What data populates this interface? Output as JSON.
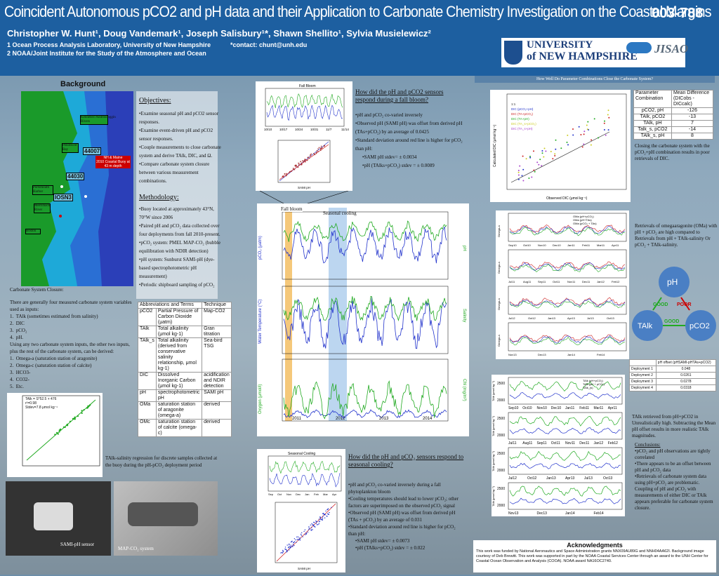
{
  "header": {
    "title": "Coincident Autonomous pCO2 and pH data and their Application to Carbonate Chemistry Investigation on the Coastal Margins",
    "poster_id": "003-788",
    "authors": "Christopher W. Hunt¹, Doug Vandemark¹, Joseph Salisbury¹*, Shawn Shellito¹,  Sylvia Musielewicz²",
    "affiliation1": "1 Ocean Process Analysis Laboratory, University of New Hampshire",
    "contact_label": "*contact:",
    "contact_email": "chunt@unh.edu",
    "affiliation2": "2 NOAA/Joint Institute for the Study of the Atmosphere and Ocean",
    "logo_unh_line1": "UNIVERSITY",
    "logo_unh_line2": "of NEW HAMPSHIRE",
    "logo_jisao": "JISAO"
  },
  "background": {
    "title": "Background",
    "map_labels": [
      "Kennebec/Androscoggin Rivers",
      "Penobscot Bay",
      "44007",
      "Portsmouth Harbor",
      "Great Bay",
      "Merrimack River",
      "Boston",
      "44030",
      "IOSN3",
      "Gulf of Maine",
      "NH & Maine",
      "2010 Coastal Buoy at 43 m depth"
    ],
    "closure_title": "Carbonate System Closure:",
    "closure_text": "There are generally four measured carbonate system variables used as inputs:",
    "closure_list": [
      "TAlk (sometimes estimated from salinity)",
      "DIC",
      "pCO₂",
      "pH."
    ],
    "closure_text2": "Using any two carbonate system inputs, the other two inputs, plus the rest of the carbonate system, can be derived:",
    "closure_list2": [
      "Omega-a (saturation station of aragonite)",
      "Omega-c (saturation station of calcite)",
      "HCO3-",
      "CO32-",
      "Etc."
    ],
    "reg_annotation": [
      "TAlk = S*52.5 + 476",
      "r²=0.98",
      "Stdev=7.8 μmol kg⁻¹"
    ],
    "reg_caption": "TAlk-salinity regression for discrete samples collected at the buoy during the pH-pCO₂ deployment period",
    "photo_left_label": "SAMI-pH sensor",
    "photo_right_label": "MAP-CO₂ system"
  },
  "objectives": {
    "title": "Objectives:",
    "items": [
      "•Examine seasonal pH and pCO2 sensor responses.",
      "•Examine event-driven pH and pCO2 sensor responses.",
      "•Couple measurements to close carbonate system and derive TAlk, DIC, and Ω.",
      "•Compare carbonate system closure between various measurement combinations."
    ]
  },
  "methodology": {
    "title": "Methodology:",
    "items": [
      "•Buoy located at approximately 43°N, 70°W since 2006",
      "•Paired pH and pCO₂ data collected over four deployments from fall 2010-present.",
      "•pCO₂ system: PMEL MAP-CO₂ (bubble equilibration with NDIR detection)",
      "•pH system: Sunburst SAMI-pH (dye-based spectrophotometric pH measurement)",
      "•Periodic shipboard sampling of pCO₂"
    ]
  },
  "abbr_table": {
    "headers": [
      "Abbreviations and Terms",
      "Technique"
    ],
    "rows": [
      [
        "pCO2",
        "Partial Pressure of Carbon Dioxide (μatm)",
        "Map-CO2"
      ],
      [
        "TAlk",
        "Total alkalinity (μmol kg-1)",
        "Gran titration"
      ],
      [
        "TAlk_s",
        "Total alkalinity (derived from conservative salinity relationship, μmol kg-1)",
        "Sea-bird TSG"
      ],
      [
        "DIC",
        "Dissolved Inorganic Carbon (μmol kg-1)",
        "acidification and NDIR detection"
      ],
      [
        "pH",
        "spectrophotometric pH",
        "SAMI pH"
      ],
      [
        "OMa",
        "saturation station of aragonite (omega-a)",
        "derived"
      ],
      [
        "OMc",
        "saturation station of calcite (omega-c)",
        "derived"
      ]
    ]
  },
  "fall_bloom_fig": {
    "title": "Fall Bloom",
    "xticks": [
      "10/10",
      "10/17",
      "10/24",
      "10/31",
      "11/7",
      "11/14"
    ],
    "ylabel_left": "pCO₂ (μatm)",
    "ylabel_right": "pH",
    "scatter_xlabel": "SAMI pH",
    "scatter_ylabel": "pH (TAs+pCO₂)",
    "scatter_ticks": [
      "7.9",
      "7.95",
      "8",
      "8.05",
      "8.1",
      "8.15"
    ]
  },
  "fall_bloom_text": {
    "title": "How did the pH and pCO2 sensors respond during a fall bloom?",
    "items": [
      "•pH and pCO₂ co-varied inversely",
      "•Observed pH (SAMI pH) was offset from derived pH (TAs+pCO₂) by an average of 0.0425",
      "•Standard deviation around red line is higher for pCO₂ than pH:"
    ],
    "subitems": [
      "•SAMI pH stdev= ± 0.0034",
      "•pH (TAlks+pCO₂) stdev = ± 0.0089"
    ]
  },
  "timeseries_fig": {
    "label_fall": "Fall bloom",
    "label_season": "Seasonal cooling",
    "years": [
      "2011",
      "2012",
      "2013",
      "2014"
    ],
    "ylabels": [
      "pCO₂ (μatm)",
      "Water Temperature (°C)",
      "Oxygen (μmol/l)"
    ],
    "ylabels_right": [
      "pH",
      "Salinity",
      "Chl (mg/m³)"
    ]
  },
  "seasonal_fig": {
    "title": "Seasonal Cooling",
    "xticks": [
      "Sep",
      "Oct",
      "Nov",
      "Dec",
      "Jan",
      "Feb",
      "Mar",
      "Apr"
    ],
    "scatter_xlabel": "SAMI pH",
    "scatter_ylabel": "pH (TAlks+pCO₂)"
  },
  "seasonal_text": {
    "title": "How did the pH and pCO₂ sensors respond to seasonal cooling?",
    "items": [
      "•pH and pCO₂ co-varied inversely during a fall phytoplankton bloom",
      "•Cooling temperatures should lead to lower pCO₂; other factors are superimposed on the observed pCO₂ signal",
      "•Observed pH (SAMI pH) was offset from derived pH (TAs + pCO₂) by an average of 0.031",
      "•Standard deviation around red line is higher for pCO₂ than pH:"
    ],
    "subitems": [
      "•SAMI pH stdev= ± 0.0073",
      "•pH (TAlks+pCO₂) stdev = ± 0.022"
    ]
  },
  "right_col": {
    "banner": "How Well Do Parameter Combinations Close the Carbonate System?",
    "dic_xlabel": "Observed DIC (μmol kg⁻¹)",
    "dic_ylabel": "Calculated DIC (μmol kg⁻¹)",
    "dic_legend": [
      "1:1",
      "DIC (pCO₂+pH)",
      "DIC (TA+pCO₂)",
      "DIC (TA+pH)",
      "DIC (TA_s+pCO₂)",
      "DIC (TA_s+pH)"
    ],
    "mean_table_headers": [
      "Parameter Combination",
      "Mean Difference (DICobs - DICcalc)"
    ],
    "mean_table_rows": [
      [
        "pCO2, pH",
        "-126"
      ],
      [
        "TAlk, pCO2",
        "-13"
      ],
      [
        "TAlk, pH",
        "7"
      ],
      [
        "Talk_s, pCO2",
        "-14"
      ],
      [
        "TAlk_s, pH",
        "8"
      ]
    ],
    "mean_caption": "Closing the carbonate system with the pCO₂+pH combination results in poor retrievals of DIC.",
    "omega_caption": "Retrievals of omegaaragonite (OMa) with pH + pCO₂ are high compared to Retrievals from pH + TAlk-salinity Or pCO₂ + TAlk-salinity.",
    "omega_legend": [
      "OMa (pH+pCO₂)",
      "OMa (pH+TAs)",
      "OMa (pCO₂ + TAs)"
    ],
    "omega_xticks": [
      [
        "Sep10",
        "Oct10",
        "Nov10",
        "Dec10",
        "Jan11",
        "Feb11",
        "Mar11",
        "Apr11"
      ],
      [
        "Jul11",
        "Aug11",
        "Sep11",
        "Oct11",
        "Nov11",
        "Dec11",
        "Jan12",
        "Feb12"
      ],
      [
        "Jul12",
        "Oct12",
        "Jan13",
        "Apr13",
        "Jul13",
        "Oct13"
      ],
      [
        "Nov13",
        "Dec13",
        "Jan14",
        "Feb14"
      ]
    ],
    "omega_ylabel": "Omega-a",
    "diagram": {
      "top": "pH",
      "left": "TAlk",
      "right": "pCO2",
      "good1": "GOOD",
      "poor": "POOR",
      "good2": "GOOD"
    },
    "offset_table_header": "pH offset (pHSAMI-pHTAs+pCO2)",
    "offset_rows": [
      [
        "Deployment 1",
        "0.048"
      ],
      [
        "Deployment 2",
        "0.0261"
      ],
      [
        "Deployment 3",
        "0.0278"
      ],
      [
        "Deployment 4",
        "0.0318"
      ]
    ],
    "talk_legend": [
      "TAlk (pH+pCO₂)",
      "TAlk (pH + pCO₂)",
      "TAlk_(s)"
    ],
    "talk_ylabel": "TAlk (μmol kg⁻¹)",
    "talk_yticks": [
      "2500",
      "2000"
    ],
    "talk_caption": "TAlk retrieved from pH+pCO2 in Unrealistically high. Subtracting the Mean pH offset results in more realistic TAlk magnitudes.",
    "conclusions_title": "Conclusions:",
    "conclusions": [
      "•pCO₂ and pH observations are tightly correlated",
      "•There appears to be an offset between pH and pCO₂ data",
      "•Retrievals of carbonate system data using pH+pCO₂ are problematic.  Coupling of pH and pCO₂ with measurements of either DIC or TAlk appears preferable for carbonate system closure."
    ],
    "ack_title": "Acknowledgments",
    "ack_text": "This work was funded by National Aeronautics and Space Administration grants NNX09AU89G and NNH04AA62I. Background image courtesy of Deb Brewitt. This work was supported in part by the NOAA Coastal Services Center through an award to the UNH Center for Coastal Ocean Observation and Analysis (COOA). NOAA award NA16OC2740."
  },
  "colors": {
    "header": "#1d5fa0",
    "series_blue": "#2233cc",
    "series_green": "#22aa22",
    "fall_band": "#f5c87a",
    "season_band": "#bcd6f0"
  }
}
